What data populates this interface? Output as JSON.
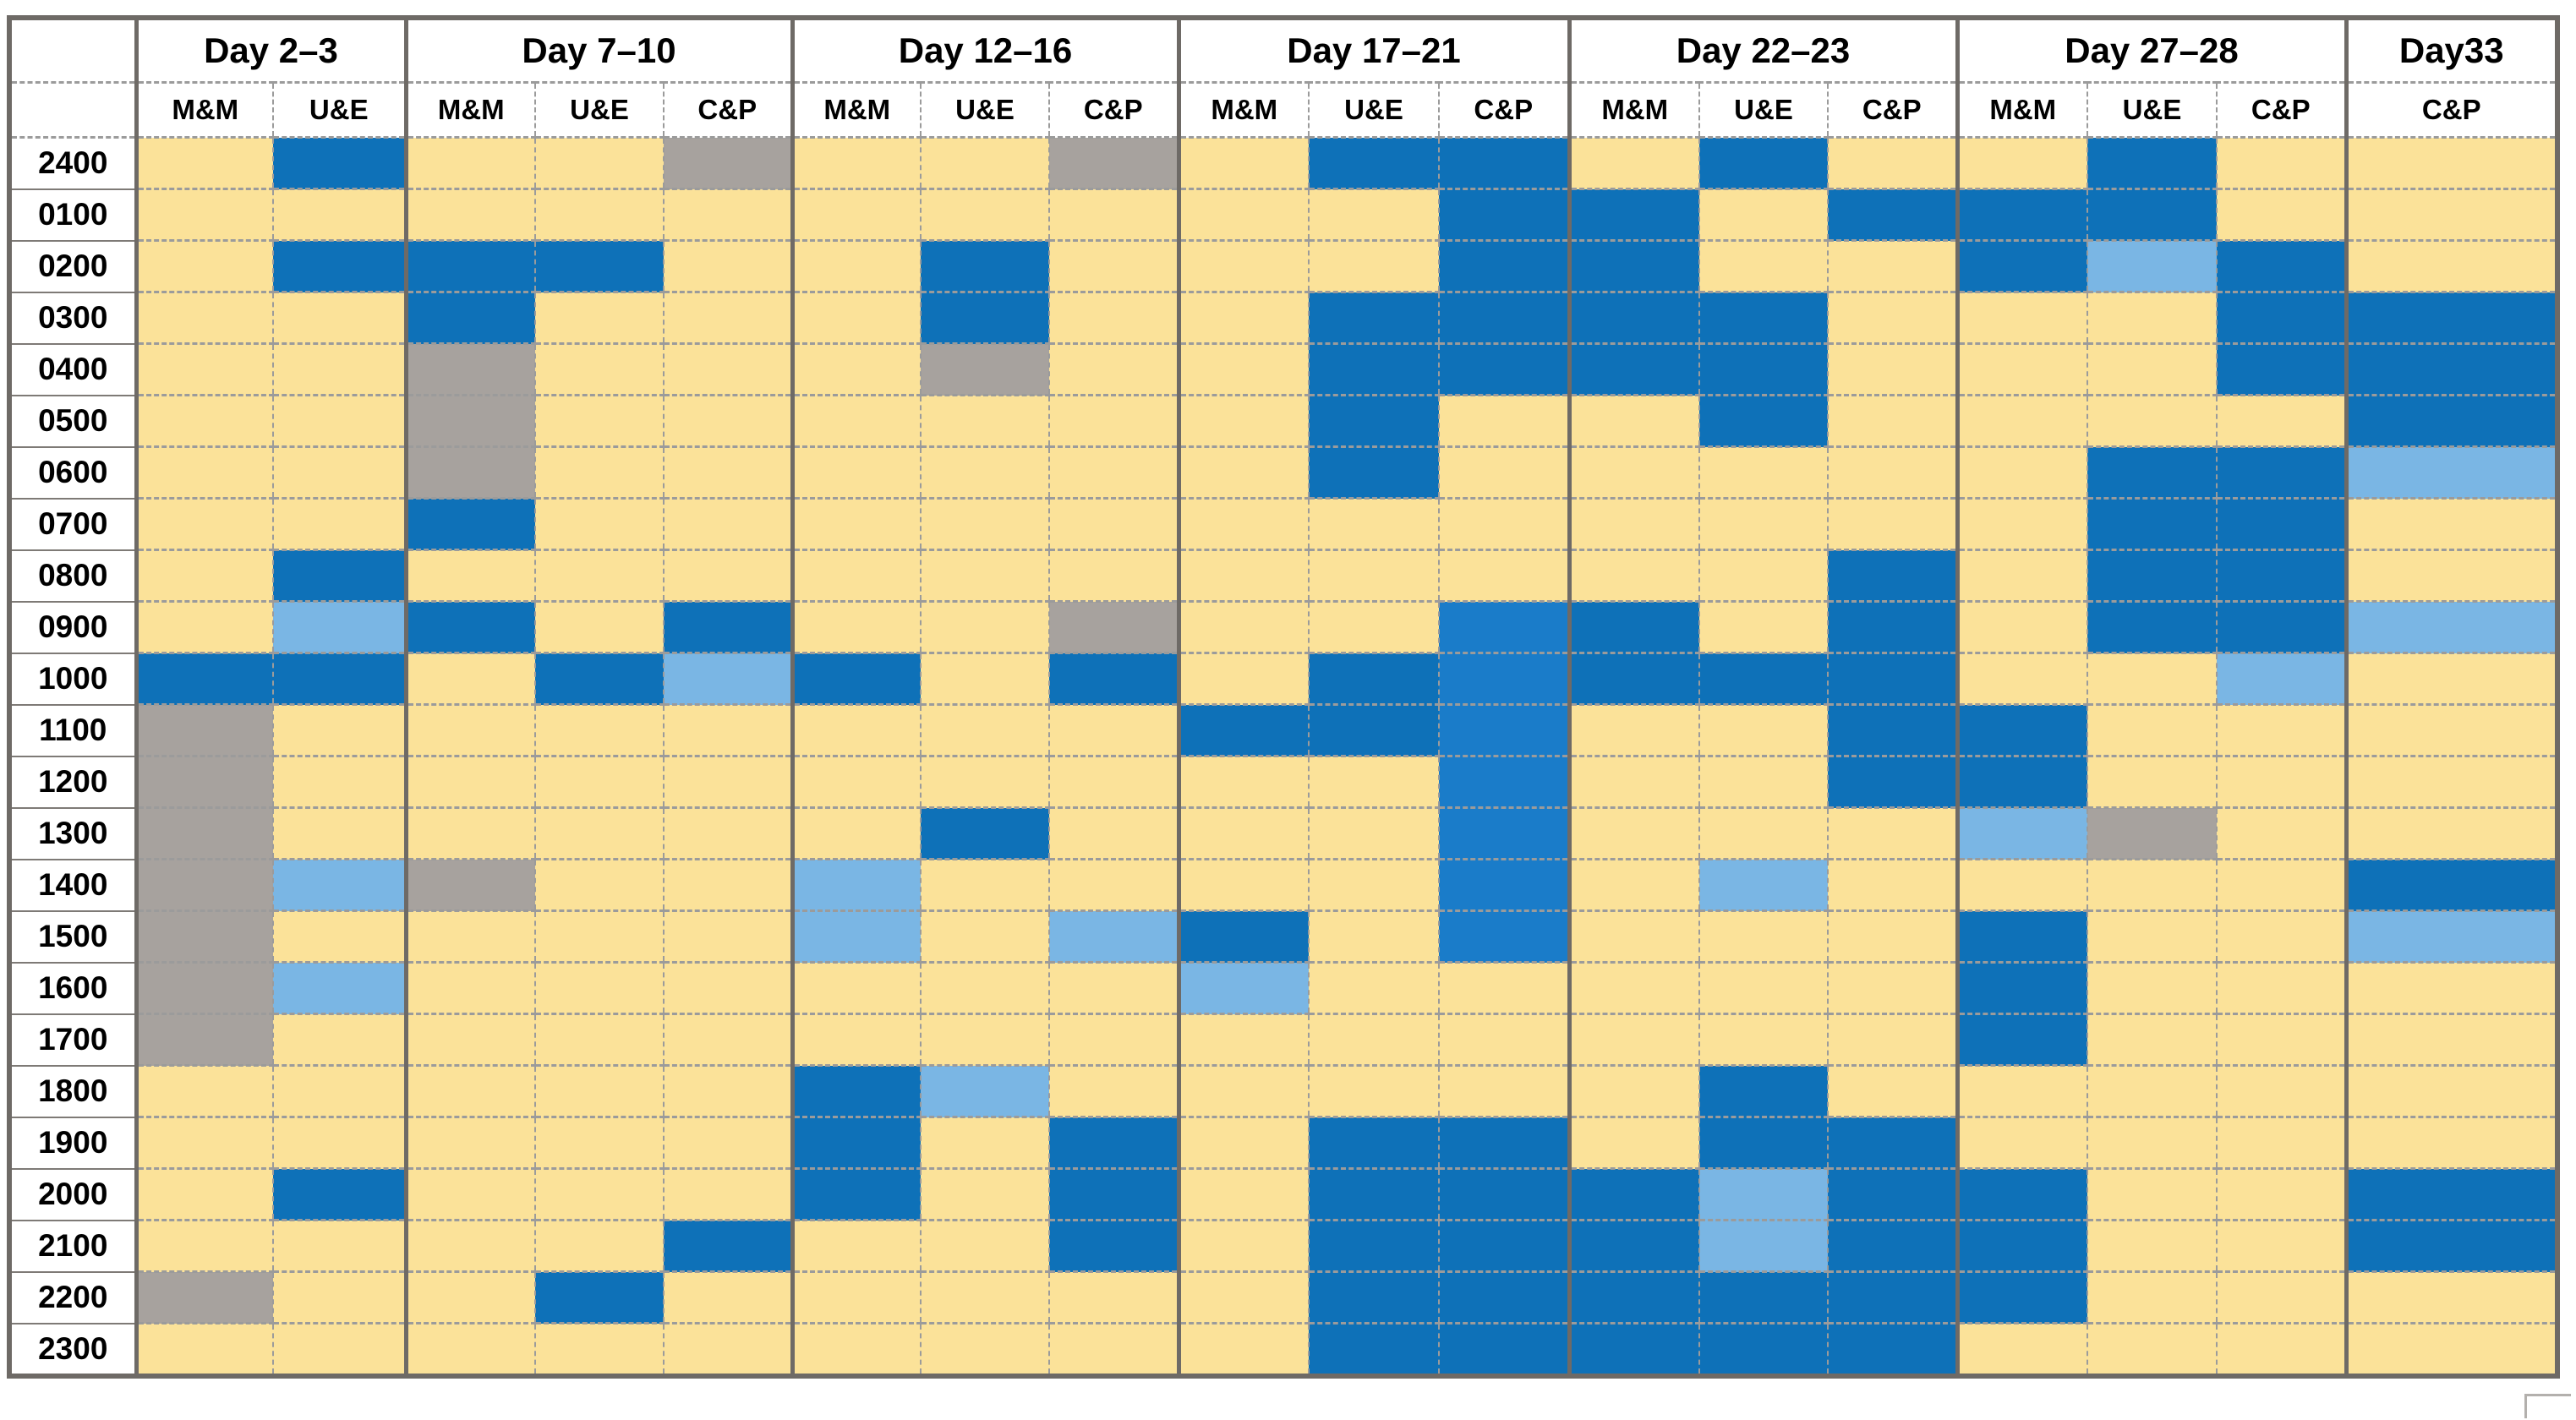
{
  "chart_data": {
    "type": "heatmap",
    "title": "",
    "row_labels": [
      "2400",
      "0100",
      "0200",
      "0300",
      "0400",
      "0500",
      "0600",
      "0700",
      "0800",
      "0900",
      "1000",
      "1100",
      "1200",
      "1300",
      "1400",
      "1500",
      "1600",
      "1700",
      "1800",
      "1900",
      "2000",
      "2100",
      "2200",
      "2300"
    ],
    "column_groups": [
      {
        "label": "Day 2–3",
        "sub_columns": [
          "M&M",
          "U&E"
        ]
      },
      {
        "label": "Day 7–10",
        "sub_columns": [
          "M&M",
          "U&E",
          "C&P"
        ]
      },
      {
        "label": "Day 12–16",
        "sub_columns": [
          "M&M",
          "U&E",
          "C&P"
        ]
      },
      {
        "label": "Day 17–21",
        "sub_columns": [
          "M&M",
          "U&E",
          "C&P"
        ]
      },
      {
        "label": "Day 22–23",
        "sub_columns": [
          "M&M",
          "U&E",
          "C&P"
        ]
      },
      {
        "label": "Day 27–28",
        "sub_columns": [
          "M&M",
          "U&E",
          "C&P"
        ]
      },
      {
        "label": "Day33",
        "sub_columns": [
          "C&P"
        ]
      }
    ],
    "cell_codes_legend": {
      "Y": "yellow (no event)",
      "B": "dark blue",
      "b": "bright blue",
      "L": "light blue",
      "G": "gray"
    },
    "colors": {
      "Y": "#FBE299",
      "B": "#0E71B8",
      "b": "#1A7CC9",
      "L": "#7AB6E4",
      "G": "#A7A29E",
      "header_bg": "#FFFFFF",
      "group_border": "#6E6A66",
      "grid_dash": "#9B9B9B"
    },
    "rows": [
      [
        "Y",
        "B",
        "Y",
        "Y",
        "G",
        "Y",
        "Y",
        "G",
        "Y",
        "B",
        "B",
        "Y",
        "B",
        "Y",
        "Y",
        "B",
        "Y",
        "Y"
      ],
      [
        "Y",
        "Y",
        "Y",
        "Y",
        "Y",
        "Y",
        "Y",
        "Y",
        "Y",
        "Y",
        "B",
        "B",
        "Y",
        "B",
        "B",
        "B",
        "Y",
        "Y"
      ],
      [
        "Y",
        "B",
        "B",
        "B",
        "Y",
        "Y",
        "B",
        "Y",
        "Y",
        "Y",
        "B",
        "B",
        "Y",
        "Y",
        "B",
        "L",
        "B",
        "Y"
      ],
      [
        "Y",
        "Y",
        "B",
        "Y",
        "Y",
        "Y",
        "B",
        "Y",
        "Y",
        "B",
        "B",
        "B",
        "B",
        "Y",
        "Y",
        "Y",
        "B",
        "B"
      ],
      [
        "Y",
        "Y",
        "G",
        "Y",
        "Y",
        "Y",
        "G",
        "Y",
        "Y",
        "B",
        "B",
        "B",
        "B",
        "Y",
        "Y",
        "Y",
        "B",
        "B"
      ],
      [
        "Y",
        "Y",
        "G",
        "Y",
        "Y",
        "Y",
        "Y",
        "Y",
        "Y",
        "B",
        "Y",
        "Y",
        "B",
        "Y",
        "Y",
        "Y",
        "Y",
        "B"
      ],
      [
        "Y",
        "Y",
        "G",
        "Y",
        "Y",
        "Y",
        "Y",
        "Y",
        "Y",
        "B",
        "Y",
        "Y",
        "Y",
        "Y",
        "Y",
        "B",
        "B",
        "L"
      ],
      [
        "Y",
        "Y",
        "B",
        "Y",
        "Y",
        "Y",
        "Y",
        "Y",
        "Y",
        "Y",
        "Y",
        "Y",
        "Y",
        "Y",
        "Y",
        "B",
        "B",
        "Y"
      ],
      [
        "Y",
        "B",
        "Y",
        "Y",
        "Y",
        "Y",
        "Y",
        "Y",
        "Y",
        "Y",
        "Y",
        "Y",
        "Y",
        "B",
        "Y",
        "B",
        "B",
        "Y"
      ],
      [
        "Y",
        "L",
        "B",
        "Y",
        "B",
        "Y",
        "Y",
        "G",
        "Y",
        "Y",
        "b",
        "B",
        "Y",
        "B",
        "Y",
        "B",
        "B",
        "L"
      ],
      [
        "B",
        "B",
        "Y",
        "B",
        "L",
        "B",
        "Y",
        "B",
        "Y",
        "B",
        "b",
        "B",
        "B",
        "B",
        "Y",
        "Y",
        "L",
        "Y"
      ],
      [
        "G",
        "Y",
        "Y",
        "Y",
        "Y",
        "Y",
        "Y",
        "Y",
        "B",
        "B",
        "b",
        "Y",
        "Y",
        "B",
        "B",
        "Y",
        "Y",
        "Y"
      ],
      [
        "G",
        "Y",
        "Y",
        "Y",
        "Y",
        "Y",
        "Y",
        "Y",
        "Y",
        "Y",
        "b",
        "Y",
        "Y",
        "B",
        "B",
        "Y",
        "Y",
        "Y"
      ],
      [
        "G",
        "Y",
        "Y",
        "Y",
        "Y",
        "Y",
        "B",
        "Y",
        "Y",
        "Y",
        "b",
        "Y",
        "Y",
        "Y",
        "L",
        "G",
        "Y",
        "Y"
      ],
      [
        "G",
        "L",
        "G",
        "Y",
        "Y",
        "L",
        "Y",
        "Y",
        "Y",
        "Y",
        "b",
        "Y",
        "L",
        "Y",
        "Y",
        "Y",
        "Y",
        "B"
      ],
      [
        "G",
        "Y",
        "Y",
        "Y",
        "Y",
        "L",
        "Y",
        "L",
        "B",
        "Y",
        "b",
        "Y",
        "Y",
        "Y",
        "B",
        "Y",
        "Y",
        "L"
      ],
      [
        "G",
        "L",
        "Y",
        "Y",
        "Y",
        "Y",
        "Y",
        "Y",
        "L",
        "Y",
        "Y",
        "Y",
        "Y",
        "Y",
        "B",
        "Y",
        "Y",
        "Y"
      ],
      [
        "G",
        "Y",
        "Y",
        "Y",
        "Y",
        "Y",
        "Y",
        "Y",
        "Y",
        "Y",
        "Y",
        "Y",
        "Y",
        "Y",
        "B",
        "Y",
        "Y",
        "Y"
      ],
      [
        "Y",
        "Y",
        "Y",
        "Y",
        "Y",
        "B",
        "L",
        "Y",
        "Y",
        "Y",
        "Y",
        "Y",
        "B",
        "Y",
        "Y",
        "Y",
        "Y",
        "Y"
      ],
      [
        "Y",
        "Y",
        "Y",
        "Y",
        "Y",
        "B",
        "Y",
        "B",
        "Y",
        "B",
        "B",
        "Y",
        "B",
        "B",
        "Y",
        "Y",
        "Y",
        "Y"
      ],
      [
        "Y",
        "B",
        "Y",
        "Y",
        "Y",
        "B",
        "Y",
        "B",
        "Y",
        "B",
        "B",
        "B",
        "L",
        "B",
        "B",
        "Y",
        "Y",
        "B"
      ],
      [
        "Y",
        "Y",
        "Y",
        "Y",
        "B",
        "Y",
        "Y",
        "B",
        "Y",
        "B",
        "B",
        "B",
        "L",
        "B",
        "B",
        "Y",
        "Y",
        "B"
      ],
      [
        "G",
        "Y",
        "Y",
        "B",
        "Y",
        "Y",
        "Y",
        "Y",
        "Y",
        "B",
        "B",
        "B",
        "B",
        "B",
        "B",
        "Y",
        "Y",
        "Y"
      ],
      [
        "Y",
        "Y",
        "Y",
        "Y",
        "Y",
        "Y",
        "Y",
        "Y",
        "Y",
        "B",
        "B",
        "B",
        "B",
        "B",
        "Y",
        "Y",
        "Y",
        "Y"
      ]
    ]
  }
}
